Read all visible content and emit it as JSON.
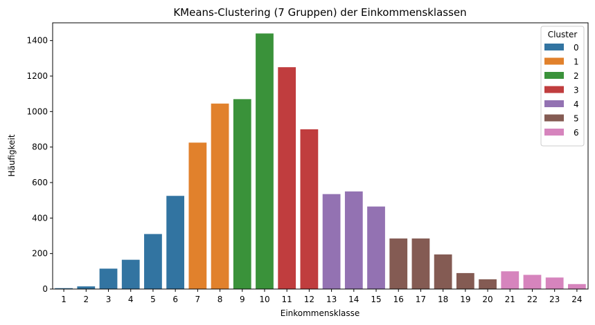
{
  "chart_data": {
    "type": "bar",
    "title": "KMeans-Clustering (7 Gruppen) der Einkommensklassen",
    "xlabel": "Einkommensklasse",
    "ylabel": "Häufigkeit",
    "ylim": [
      0,
      1500
    ],
    "yticks": [
      0,
      200,
      400,
      600,
      800,
      1000,
      1200,
      1400
    ],
    "categories": [
      "1",
      "2",
      "3",
      "4",
      "5",
      "6",
      "7",
      "8",
      "9",
      "10",
      "11",
      "12",
      "13",
      "14",
      "15",
      "16",
      "17",
      "18",
      "19",
      "20",
      "21",
      "22",
      "23",
      "24"
    ],
    "values": [
      5,
      15,
      115,
      165,
      310,
      525,
      825,
      1045,
      1070,
      1440,
      1250,
      900,
      535,
      550,
      465,
      285,
      285,
      195,
      90,
      55,
      100,
      80,
      65,
      28
    ],
    "cluster": [
      0,
      0,
      0,
      0,
      0,
      0,
      1,
      1,
      2,
      2,
      3,
      3,
      4,
      4,
      4,
      5,
      5,
      5,
      5,
      5,
      6,
      6,
      6,
      6
    ],
    "legend": {
      "title": "Cluster",
      "placement": "top-right",
      "entries": [
        {
          "label": "0",
          "color": "#3274a1"
        },
        {
          "label": "1",
          "color": "#e1812c"
        },
        {
          "label": "2",
          "color": "#3a923a"
        },
        {
          "label": "3",
          "color": "#c03d3e"
        },
        {
          "label": "4",
          "color": "#9372b2"
        },
        {
          "label": "5",
          "color": "#845b53"
        },
        {
          "label": "6",
          "color": "#d684bd"
        }
      ]
    },
    "grid": false
  }
}
